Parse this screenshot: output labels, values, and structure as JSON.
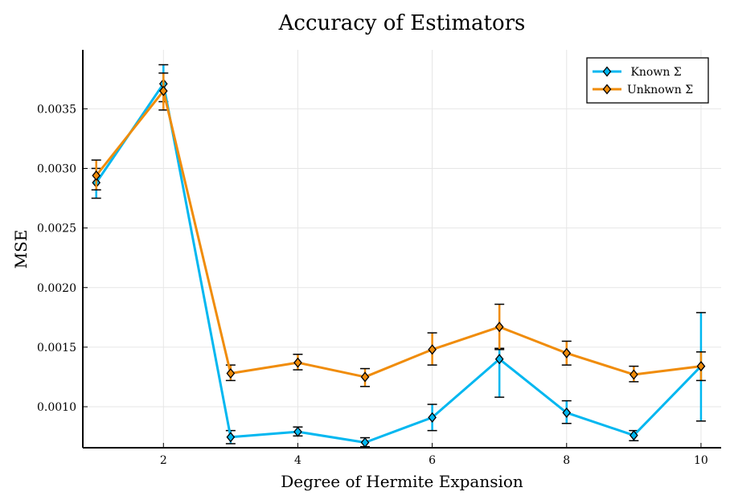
{
  "chart_data": {
    "type": "line",
    "title": "Accuracy of Estimators",
    "xlabel": "Degree of Hermite Expansion",
    "ylabel": "MSE",
    "xlim": [
      0.8,
      10.3
    ],
    "ylim": [
      0.000656,
      0.003995
    ],
    "xticks": [
      2,
      4,
      6,
      8,
      10
    ],
    "xtick_labels": [
      "2",
      "4",
      "6",
      "8",
      "10"
    ],
    "yticks": [
      0.001,
      0.0015,
      0.002,
      0.0025,
      0.003,
      0.0035
    ],
    "ytick_labels": [
      "0.0010",
      "0.0015",
      "0.0020",
      "0.0025",
      "0.0030",
      "0.0035"
    ],
    "grid": true,
    "legend_position": "top-right",
    "x": [
      1,
      2,
      3,
      4,
      5,
      6,
      7,
      8,
      9,
      10
    ],
    "series": [
      {
        "name": "Known Σ",
        "color": "#00b7f0",
        "values": [
          0.00288,
          0.00371,
          0.000745,
          0.00079,
          0.0007,
          0.00091,
          0.0014,
          0.00095,
          0.00076,
          0.00134
        ],
        "err_low": [
          0.00275,
          0.00356,
          0.00069,
          0.000755,
          0.000665,
          0.0008,
          0.00108,
          0.00086,
          0.000715,
          0.00088
        ],
        "err_high": [
          0.003,
          0.00387,
          0.0008,
          0.00083,
          0.00074,
          0.00102,
          0.00149,
          0.00105,
          0.0008,
          0.00179
        ]
      },
      {
        "name": "Unknown Σ",
        "color": "#f08c0a",
        "values": [
          0.00294,
          0.00365,
          0.00128,
          0.00137,
          0.00125,
          0.00148,
          0.00167,
          0.00145,
          0.00127,
          0.00134
        ],
        "err_low": [
          0.00282,
          0.00349,
          0.00122,
          0.00131,
          0.00117,
          0.00135,
          0.00148,
          0.00135,
          0.00121,
          0.00122
        ],
        "err_high": [
          0.00307,
          0.0038,
          0.00135,
          0.00144,
          0.00132,
          0.00162,
          0.00186,
          0.00155,
          0.00134,
          0.00146
        ]
      }
    ]
  }
}
